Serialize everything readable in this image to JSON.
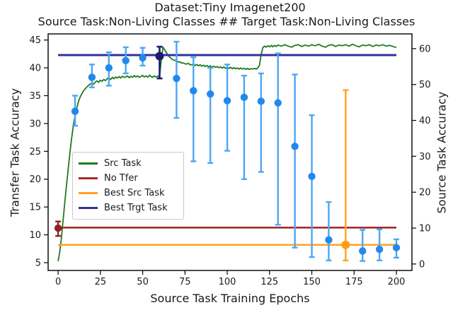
{
  "title": {
    "line1": "Dataset:Tiny Imagenet200",
    "line2": "Source Task:Non-Living Classes ## Target Task:Non-Living Classes"
  },
  "axes": {
    "x": {
      "label": "Source Task Training Epochs",
      "ticks": [
        0,
        25,
        50,
        75,
        100,
        125,
        150,
        175,
        200
      ]
    },
    "y_left": {
      "label": "Transfer Task Accuracy",
      "ticks": [
        5,
        10,
        15,
        20,
        25,
        30,
        35,
        40,
        45
      ]
    },
    "y_right": {
      "label": "Source Task Accuracy",
      "ticks": [
        0,
        10,
        20,
        30,
        40,
        50,
        60
      ]
    }
  },
  "legend": {
    "items": [
      {
        "label": "Src Task",
        "color": "#1f7a1f"
      },
      {
        "label": "No Tfer",
        "color": "#a52a2a"
      },
      {
        "label": "Best Src Task",
        "color": "#ffa21f"
      },
      {
        "label": "Best Trgt Task",
        "color": "#31319c"
      }
    ]
  },
  "colors": {
    "src_task_line": "#1f7a1f",
    "no_tfer_line": "#a52a2a",
    "best_src_line": "#ffa21f",
    "best_trgt_line": "#31319c",
    "transfer_bar": "#4da6f5",
    "transfer_marker": "#2289ec",
    "no_tfer_marker": "#8f2222",
    "best_trgt_marker": "#1c1c6e",
    "best_src_marker": "#ff9d12",
    "text": "#1a1a1a",
    "spine": "#000000"
  },
  "chart_data": {
    "type": "line+errorbar",
    "title": "Dataset:Tiny Imagenet200 | Source Task:Non-Living Classes ## Target Task:Non-Living Classes",
    "xlabel": "Source Task Training Epochs",
    "ylabel_left": "Transfer Task Accuracy",
    "ylabel_right": "Source Task Accuracy",
    "grid": false,
    "legend_position": "center-left",
    "xlim": [
      -5.9,
      209.2
    ],
    "ylim_left": [
      3.6,
      46.1
    ],
    "ylim_right": [
      -1.8,
      64.1
    ],
    "series": [
      {
        "name": "Src Task",
        "type": "line",
        "axis": "right",
        "color": "#1f7a1f",
        "width": 1.8,
        "points": [
          [
            0,
            0.8
          ],
          [
            1,
            3.5
          ],
          [
            2,
            7.5
          ],
          [
            3,
            12.5
          ],
          [
            4,
            17.5
          ],
          [
            5,
            22
          ],
          [
            6,
            26.5
          ],
          [
            7,
            31
          ],
          [
            8,
            35
          ],
          [
            9,
            38.5
          ],
          [
            10,
            41.2
          ],
          [
            11,
            43.4
          ],
          [
            12,
            45.2
          ],
          [
            13,
            46.5
          ],
          [
            14,
            47.4
          ],
          [
            15,
            48.2
          ],
          [
            16,
            48.8
          ],
          [
            17,
            49.3
          ],
          [
            18,
            49.8
          ],
          [
            19,
            50.1
          ],
          [
            20,
            50.4
          ],
          [
            21,
            50.1
          ],
          [
            22,
            50.7
          ],
          [
            23,
            51
          ],
          [
            24,
            50.6
          ],
          [
            25,
            51.2
          ],
          [
            26,
            50.9
          ],
          [
            27,
            51.4
          ],
          [
            28,
            51.1
          ],
          [
            29,
            51.6
          ],
          [
            30,
            51.8
          ],
          [
            31,
            51.4
          ],
          [
            32,
            52
          ],
          [
            33,
            51.6
          ],
          [
            34,
            52.1
          ],
          [
            35,
            51.8
          ],
          [
            36,
            52.2
          ],
          [
            37,
            51.8
          ],
          [
            38,
            52.3
          ],
          [
            39,
            52
          ],
          [
            40,
            52.1
          ],
          [
            41,
            52.4
          ],
          [
            42,
            51.9
          ],
          [
            43,
            52.3
          ],
          [
            44,
            52
          ],
          [
            45,
            52.5
          ],
          [
            46,
            52.1
          ],
          [
            47,
            52.4
          ],
          [
            48,
            52
          ],
          [
            49,
            52.3
          ],
          [
            50,
            52.5
          ],
          [
            51,
            52.1
          ],
          [
            52,
            52.4
          ],
          [
            53,
            52
          ],
          [
            54,
            52.6
          ],
          [
            55,
            52.2
          ],
          [
            56,
            52
          ],
          [
            57,
            52.4
          ],
          [
            58,
            52.1
          ],
          [
            59,
            52.3
          ],
          [
            60,
            52.5
          ],
          [
            61,
            56.8
          ],
          [
            62,
            60.4
          ],
          [
            63,
            59.7
          ],
          [
            64,
            58.9
          ],
          [
            65,
            58.1
          ],
          [
            66,
            57.6
          ],
          [
            67,
            57.2
          ],
          [
            68,
            56.9
          ],
          [
            69,
            56.7
          ],
          [
            70,
            56.6
          ],
          [
            71,
            56.3
          ],
          [
            72,
            56.3
          ],
          [
            73,
            56
          ],
          [
            74,
            56
          ],
          [
            75,
            55.8
          ],
          [
            76,
            55.7
          ],
          [
            77,
            55.9
          ],
          [
            78,
            55.5
          ],
          [
            79,
            55.5
          ],
          [
            80,
            55.6
          ],
          [
            81,
            55.3
          ],
          [
            82,
            55.6
          ],
          [
            83,
            55.2
          ],
          [
            84,
            55.5
          ],
          [
            85,
            55.1
          ],
          [
            86,
            55.4
          ],
          [
            87,
            55
          ],
          [
            88,
            55.3
          ],
          [
            89,
            54.9
          ],
          [
            90,
            55.2
          ],
          [
            91,
            54.8
          ],
          [
            92,
            55.1
          ],
          [
            93,
            54.8
          ],
          [
            94,
            55
          ],
          [
            95,
            54.7
          ],
          [
            96,
            54.9
          ],
          [
            97,
            54.6
          ],
          [
            98,
            54.9
          ],
          [
            99,
            54.5
          ],
          [
            100,
            54.8
          ],
          [
            101,
            54.5
          ],
          [
            102,
            54.8
          ],
          [
            103,
            54.4
          ],
          [
            104,
            54.7
          ],
          [
            105,
            54.4
          ],
          [
            106,
            54.6
          ],
          [
            107,
            54.3
          ],
          [
            108,
            54.6
          ],
          [
            109,
            54.3
          ],
          [
            110,
            54.5
          ],
          [
            111,
            54.2
          ],
          [
            112,
            54.5
          ],
          [
            113,
            54.2
          ],
          [
            114,
            54.4
          ],
          [
            115,
            54.3
          ],
          [
            116,
            54.5
          ],
          [
            117,
            54.3
          ],
          [
            118,
            54.6
          ],
          [
            119,
            55.3
          ],
          [
            120,
            58.2
          ],
          [
            121,
            60.2
          ],
          [
            122,
            60.7
          ],
          [
            123,
            60.4
          ],
          [
            124,
            60.8
          ],
          [
            125,
            60.5
          ],
          [
            126,
            60.9
          ],
          [
            127,
            60.5
          ],
          [
            128,
            60.9
          ],
          [
            129,
            60.6
          ],
          [
            130,
            61
          ],
          [
            132,
            60.7
          ],
          [
            134,
            61.1
          ],
          [
            136,
            60.7
          ],
          [
            138,
            60.4
          ],
          [
            140,
            60.9
          ],
          [
            142,
            61.1
          ],
          [
            144,
            60.6
          ],
          [
            146,
            61
          ],
          [
            148,
            60.7
          ],
          [
            150,
            61.1
          ],
          [
            152,
            60.8
          ],
          [
            154,
            61.2
          ],
          [
            156,
            60.7
          ],
          [
            158,
            60.4
          ],
          [
            160,
            60.9
          ],
          [
            162,
            61.1
          ],
          [
            164,
            60.6
          ],
          [
            166,
            61
          ],
          [
            168,
            60.8
          ],
          [
            170,
            61.1
          ],
          [
            172,
            60.7
          ],
          [
            174,
            61.2
          ],
          [
            176,
            60.8
          ],
          [
            178,
            60.5
          ],
          [
            180,
            61
          ],
          [
            182,
            60.8
          ],
          [
            184,
            61.1
          ],
          [
            186,
            60.6
          ],
          [
            188,
            61
          ],
          [
            190,
            60.8
          ],
          [
            192,
            61.1
          ],
          [
            194,
            60.7
          ],
          [
            196,
            60.9
          ],
          [
            198,
            60.6
          ],
          [
            200,
            60.3
          ]
        ]
      },
      {
        "name": "No Tfer",
        "type": "hline",
        "axis": "left",
        "color": "#a52a2a",
        "width": 2.6,
        "value": 11.3,
        "x_span": [
          0,
          200
        ]
      },
      {
        "name": "Best Src Task",
        "type": "hline",
        "axis": "left",
        "color": "#ffa21f",
        "width": 2.6,
        "value": 8.2,
        "x_span": [
          0,
          200
        ]
      },
      {
        "name": "Best Trgt Task",
        "type": "hline",
        "axis": "left",
        "color": "#31319c",
        "width": 3,
        "value": 42.3,
        "x_span": [
          0,
          200
        ]
      },
      {
        "name": "Transfer Task Accuracy (mean with error bars)",
        "type": "errorbar",
        "axis": "left",
        "line_color": "#4da6f5",
        "marker_color": "#2289ec",
        "marker_r": 5.2,
        "bar_width": 2.4,
        "cap_half": 4,
        "points": [
          {
            "x": 10,
            "y": 32.2,
            "lo": 29.6,
            "hi": 35.0
          },
          {
            "x": 20,
            "y": 38.3,
            "lo": 36.5,
            "hi": 40.6
          },
          {
            "x": 30,
            "y": 40.0,
            "lo": 36.8,
            "hi": 42.8
          },
          {
            "x": 40,
            "y": 41.3,
            "lo": 39.0,
            "hi": 43.7
          },
          {
            "x": 50,
            "y": 41.8,
            "lo": 40.4,
            "hi": 43.6
          },
          {
            "x": 70,
            "y": 38.1,
            "lo": 31.0,
            "hi": 44.7
          },
          {
            "x": 80,
            "y": 35.9,
            "lo": 23.2,
            "hi": 41.9
          },
          {
            "x": 90,
            "y": 35.3,
            "lo": 22.9,
            "hi": 40.0
          },
          {
            "x": 100,
            "y": 34.1,
            "lo": 25.1,
            "hi": 40.6
          },
          {
            "x": 110,
            "y": 34.7,
            "lo": 20.0,
            "hi": 38.6
          },
          {
            "x": 120,
            "y": 34.0,
            "lo": 21.3,
            "hi": 39.0
          },
          {
            "x": 130,
            "y": 33.7,
            "lo": 11.8,
            "hi": 42.6
          },
          {
            "x": 140,
            "y": 25.9,
            "lo": 7.7,
            "hi": 38.8
          },
          {
            "x": 150,
            "y": 20.5,
            "lo": 6.0,
            "hi": 31.5
          },
          {
            "x": 160,
            "y": 9.1,
            "lo": 5.4,
            "hi": 15.9
          },
          {
            "x": 180,
            "y": 7.1,
            "lo": 5.3,
            "hi": 10.9
          },
          {
            "x": 190,
            "y": 7.4,
            "lo": 5.4,
            "hi": 11.0
          },
          {
            "x": 200,
            "y": 7.7,
            "lo": 5.9,
            "hi": 9.2
          }
        ]
      },
      {
        "name": "No Tfer baseline point",
        "type": "errorbar",
        "axis": "left",
        "line_color": "#8f2222",
        "marker_color": "#8f2222",
        "marker_r": 5.2,
        "bar_width": 2.4,
        "cap_half": 4,
        "points": [
          {
            "x": 0,
            "y": 11.2,
            "lo": 9.8,
            "hi": 12.4
          }
        ]
      },
      {
        "name": "Best Trgt Task point",
        "type": "errorbar",
        "axis": "left",
        "line_color": "#1c1c6e",
        "marker_color": "#1c1c6e",
        "marker_r": 6,
        "bar_width": 2.6,
        "cap_half": 4,
        "points": [
          {
            "x": 60,
            "y": 42.1,
            "lo": 38.1,
            "hi": 43.8
          }
        ]
      },
      {
        "name": "Best Src Task point",
        "type": "errorbar",
        "axis": "left",
        "line_color": "#ffa21f",
        "marker_color": "#ff9d12",
        "marker_r": 6,
        "bar_width": 2.4,
        "cap_half": 4,
        "points": [
          {
            "x": 170,
            "y": 8.2,
            "lo": 5.4,
            "hi": 36.0
          }
        ]
      }
    ]
  }
}
